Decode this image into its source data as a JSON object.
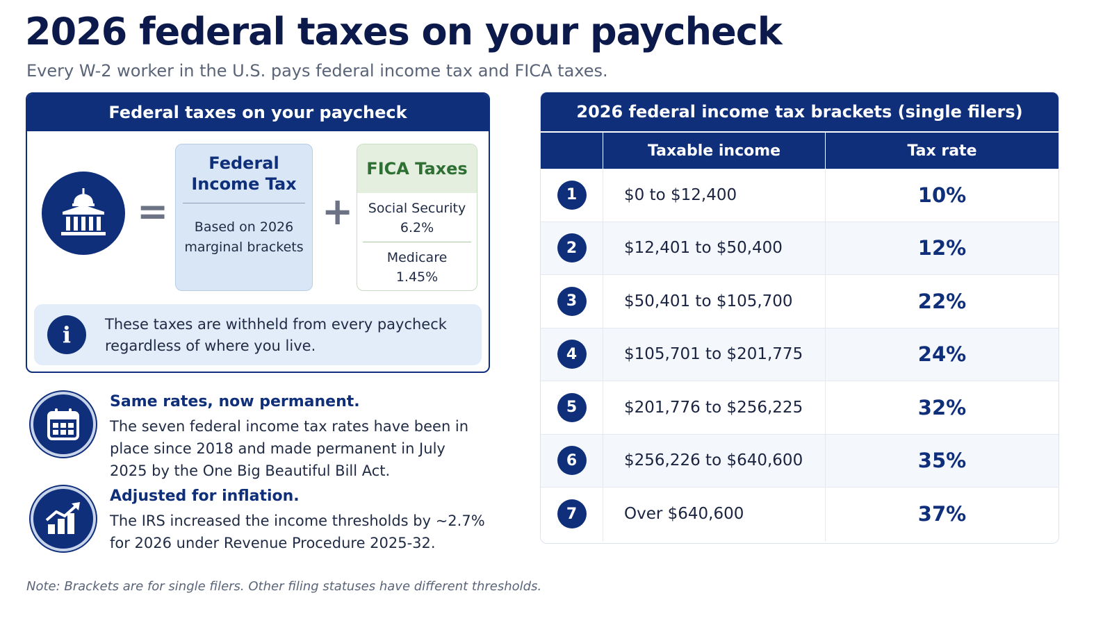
{
  "header": {
    "title": "2026 federal taxes on your paycheck",
    "subtitle": "Every W-2 worker in the U.S. pays federal income tax and FICA taxes."
  },
  "overview": {
    "card_title": "Federal taxes on your paycheck",
    "icon": "government-building-icon",
    "equals": "=",
    "plus": "+",
    "federal_income_tax": {
      "title_line1": "Federal",
      "title_line2": "Income Tax",
      "desc_line1": "Based on 2026",
      "desc_line2": "marginal brackets"
    },
    "fica": {
      "title": "FICA Taxes",
      "social_security_label": "Social Security",
      "social_security_rate": "6.2%",
      "medicare_label": "Medicare",
      "medicare_rate": "1.45%"
    },
    "info": {
      "icon_glyph": "i",
      "line1": "These taxes are withheld from every paycheck",
      "line2": "regardless of where you live."
    }
  },
  "features": [
    {
      "icon": "calendar-icon",
      "title": "Same rates, now permanent.",
      "body": "The seven federal income tax rates have been in place since 2018 and made permanent in July 2025 by the One Big Beautiful Bill Act."
    },
    {
      "icon": "growth-chart-icon",
      "title": "Adjusted for inflation.",
      "body": "The IRS increased the income thresholds by ~2.7% for 2026 under Revenue Procedure 2025-32."
    }
  ],
  "note": "Note: Brackets are for single filers. Other filing statuses have different thresholds.",
  "brackets_table": {
    "title": "2026 federal income tax brackets (single filers)",
    "col_income": "Taxable income",
    "col_rate": "Tax rate",
    "rows": [
      {
        "num": "1",
        "income": "$0 to $12,400",
        "rate": "10%"
      },
      {
        "num": "2",
        "income": "$12,401 to $50,400",
        "rate": "12%"
      },
      {
        "num": "3",
        "income": "$50,401 to $105,700",
        "rate": "22%"
      },
      {
        "num": "4",
        "income": "$105,701 to $201,775",
        "rate": "24%"
      },
      {
        "num": "5",
        "income": "$201,776 to $256,225",
        "rate": "32%"
      },
      {
        "num": "6",
        "income": "$256,226 to $640,600",
        "rate": "35%"
      },
      {
        "num": "7",
        "income": "Over $640,600",
        "rate": "37%"
      }
    ]
  },
  "colors": {
    "navy": "#0f2f7a",
    "fica_green": "#2e6f33",
    "light_blue": "#d9e6f6"
  }
}
